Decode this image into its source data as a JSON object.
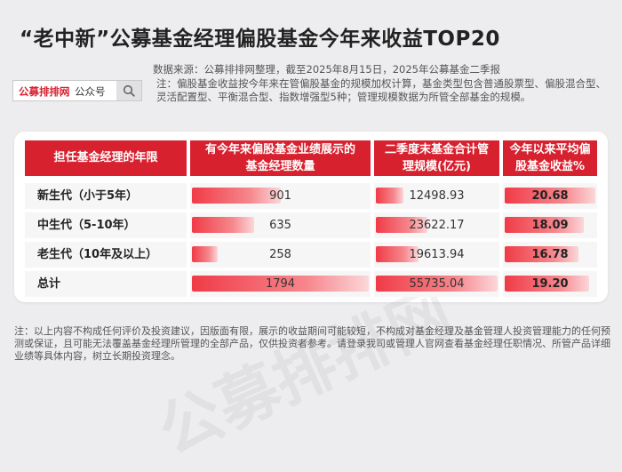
{
  "title": "“老中新”公募基金经理偏股基金今年来收益TOP20",
  "source": "数据来源：公募排排网整理，截至2025年8月15日，2025年公募基金二季报",
  "search": {
    "brand": "公募排排网",
    "suffix": "公众号",
    "icon": "search-icon"
  },
  "note": "注：偏股基金收益按今年来在管偏股基金的规模加权计算，基金类型包含普通股票型、偏股混合型、灵活配置型、平衡混合型、指数增强型5种；管理规模数据为所管全部基金的规模。",
  "table": {
    "headers": [
      [
        "担任基金经理的年限"
      ],
      [
        "有今年来偏股基金业绩展示的",
        "基金经理数量"
      ],
      [
        "二季度末基金合计管",
        "理规模(亿元)"
      ],
      [
        "今年以来平均偏",
        "股基金收益%"
      ]
    ],
    "rows": [
      {
        "label": "新生代（小于5年）",
        "count": 901,
        "count_text": "901",
        "scale": 12498.93,
        "scale_text": "12498.93",
        "ret": 20.68,
        "ret_text": "20.68"
      },
      {
        "label": "中生代（5-10年）",
        "count": 635,
        "count_text": "635",
        "scale": 23622.17,
        "scale_text": "23622.17",
        "ret": 18.09,
        "ret_text": "18.09"
      },
      {
        "label": "老生代（10年及以上）",
        "count": 258,
        "count_text": "258",
        "scale": 19613.94,
        "scale_text": "19613.94",
        "ret": 16.78,
        "ret_text": "16.78"
      },
      {
        "label": "总计",
        "count": 1794,
        "count_text": "1794",
        "scale": 55735.04,
        "scale_text": "55735.04",
        "ret": 19.2,
        "ret_text": "19.20"
      }
    ]
  },
  "watermark": "公募排排网",
  "disclaimer": "注：以上内容不构成任何评价及投资建议，因版面有限，展示的收益期间可能较短，不构成对基金经理及基金管理人投资管理能力的任何预测或保证，且可能无法覆盖基金经理所管理的全部产品，仅供投资者参考。请登录我司或管理人官网查看基金经理任职情况、所管产品详细业绩等具体内容，树立长期投资理念。",
  "colors": {
    "accent": "#d8212f",
    "bar_start": "#f03b47",
    "bar_end": "#fbd7d9"
  }
}
